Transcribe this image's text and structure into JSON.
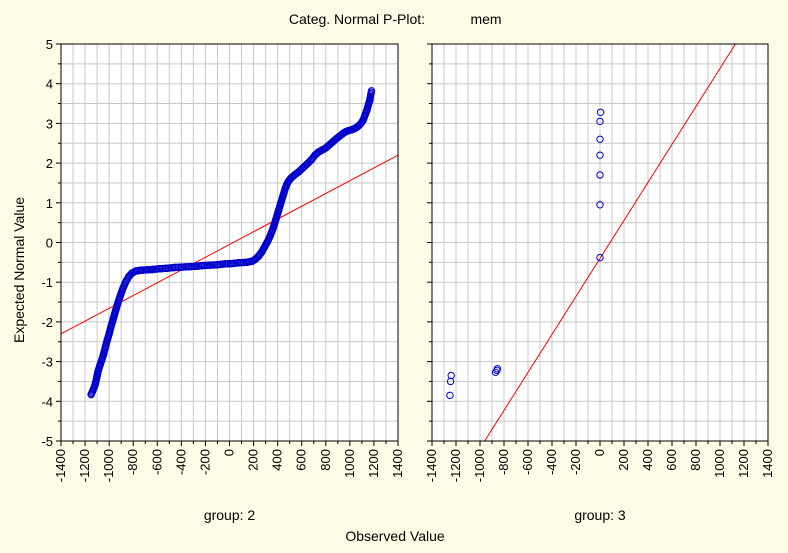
{
  "chart_data": {
    "type": "scatter",
    "title": "Categ. Normal P-Plot:",
    "variable": "mem",
    "xlabel": "Observed Value",
    "ylabel": "Expected Normal Value",
    "ylim": [
      -5,
      5
    ],
    "yticks": [
      -5,
      -4,
      -3,
      -2,
      -1,
      0,
      1,
      2,
      3,
      4,
      5
    ],
    "xlim": [
      -1400,
      1400
    ],
    "xticks": [
      -1400,
      -1200,
      -1000,
      -800,
      -600,
      -400,
      -200,
      0,
      200,
      400,
      600,
      800,
      1000,
      1200,
      1400
    ],
    "grid": true,
    "colors": {
      "points": "#0000cc",
      "fit_line": "#ff0000",
      "background": "#fdfbe6",
      "grid": "#c8c8c8"
    },
    "panels": [
      {
        "label": "group: 2",
        "fit_line": [
          [
            -1400,
            -2.3
          ],
          [
            1400,
            2.2
          ]
        ],
        "points": [
          [
            -1150,
            -3.83
          ],
          [
            -1120,
            -3.62
          ],
          [
            -1110,
            -3.5
          ],
          [
            -1100,
            -3.36
          ],
          [
            -1090,
            -3.22
          ],
          [
            -1075,
            -3.08
          ],
          [
            -1060,
            -2.95
          ],
          [
            -1045,
            -2.8
          ],
          [
            -1030,
            -2.62
          ],
          [
            -1015,
            -2.45
          ],
          [
            -1000,
            -2.3
          ],
          [
            -985,
            -2.12
          ],
          [
            -965,
            -1.92
          ],
          [
            -945,
            -1.7
          ],
          [
            -925,
            -1.5
          ],
          [
            -905,
            -1.32
          ],
          [
            -885,
            -1.15
          ],
          [
            -860,
            -0.98
          ],
          [
            -835,
            -0.85
          ],
          [
            -810,
            -0.77
          ],
          [
            -780,
            -0.72
          ],
          [
            -740,
            -0.7
          ],
          [
            -690,
            -0.69
          ],
          [
            -640,
            -0.68
          ],
          [
            -580,
            -0.66
          ],
          [
            -520,
            -0.65
          ],
          [
            -460,
            -0.63
          ],
          [
            -400,
            -0.62
          ],
          [
            -340,
            -0.61
          ],
          [
            -280,
            -0.6
          ],
          [
            -220,
            -0.58
          ],
          [
            -160,
            -0.57
          ],
          [
            -100,
            -0.56
          ],
          [
            -40,
            -0.54
          ],
          [
            20,
            -0.53
          ],
          [
            80,
            -0.51
          ],
          [
            140,
            -0.5
          ],
          [
            190,
            -0.47
          ],
          [
            215,
            -0.42
          ],
          [
            240,
            -0.35
          ],
          [
            265,
            -0.25
          ],
          [
            290,
            -0.12
          ],
          [
            315,
            0.02
          ],
          [
            340,
            0.18
          ],
          [
            365,
            0.38
          ],
          [
            385,
            0.58
          ],
          [
            405,
            0.78
          ],
          [
            425,
            0.98
          ],
          [
            445,
            1.18
          ],
          [
            465,
            1.38
          ],
          [
            485,
            1.52
          ],
          [
            510,
            1.62
          ],
          [
            540,
            1.7
          ],
          [
            575,
            1.78
          ],
          [
            610,
            1.88
          ],
          [
            645,
            1.98
          ],
          [
            680,
            2.08
          ],
          [
            710,
            2.2
          ],
          [
            740,
            2.28
          ],
          [
            770,
            2.33
          ],
          [
            800,
            2.38
          ],
          [
            830,
            2.46
          ],
          [
            860,
            2.54
          ],
          [
            890,
            2.62
          ],
          [
            915,
            2.68
          ],
          [
            940,
            2.74
          ],
          [
            965,
            2.79
          ],
          [
            990,
            2.82
          ],
          [
            1015,
            2.84
          ],
          [
            1040,
            2.87
          ],
          [
            1065,
            2.92
          ],
          [
            1090,
            2.99
          ],
          [
            1110,
            3.08
          ],
          [
            1125,
            3.2
          ],
          [
            1140,
            3.32
          ],
          [
            1155,
            3.48
          ],
          [
            1165,
            3.58
          ],
          [
            1180,
            3.82
          ]
        ]
      },
      {
        "label": "group: 3",
        "fit_line": [
          [
            -1400,
            -7.1
          ],
          [
            1400,
            6.3
          ]
        ],
        "points": [
          [
            -1250,
            -3.85
          ],
          [
            -1245,
            -3.5
          ],
          [
            -1240,
            -3.35
          ],
          [
            -870,
            -3.27
          ],
          [
            -860,
            -3.22
          ],
          [
            -855,
            -3.18
          ],
          [
            0,
            -0.38
          ],
          [
            0,
            0.95
          ],
          [
            0,
            1.7
          ],
          [
            0,
            2.2
          ],
          [
            0,
            2.6
          ],
          [
            0,
            3.05
          ],
          [
            5,
            3.28
          ]
        ]
      }
    ]
  }
}
